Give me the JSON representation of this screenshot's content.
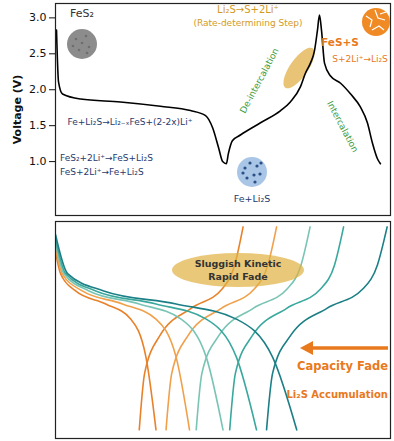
{
  "chart_data": [
    {
      "type": "line",
      "y_label": "Voltage (V)",
      "xlim": [
        0,
        100
      ],
      "ylim": [
        0.25,
        3.2
      ],
      "yticks": [
        {
          "value": 1,
          "label": "1.0"
        },
        1.5,
        {
          "value": 2,
          "label": "2.0"
        },
        2.5,
        {
          "value": 3,
          "label": "3.0"
        }
      ],
      "tick_labels": "y",
      "series": [
        {
          "color": "#000000",
          "x": [
            0.3,
            0.9,
            2.1,
            7.5,
            19.4,
            31.3,
            40.3,
            44.8,
            46.9,
            48.7,
            49.9,
            51.0,
            51.6,
            52.8,
            55.2,
            61.2,
            67.2,
            70.1,
            73.1,
            74.6,
            76.1,
            77.3,
            78.2,
            78.8,
            79.4,
            80.3,
            82.1,
            85.1,
            88.1,
            91.0,
            93.1,
            94.6,
            96.1,
            97.0
          ],
          "values": [
            2.83,
            2.11,
            1.94,
            1.87,
            1.83,
            1.77,
            1.71,
            1.64,
            1.47,
            1.19,
            1.0,
            0.97,
            1.11,
            1.29,
            1.37,
            1.54,
            1.71,
            1.83,
            2.04,
            2.23,
            2.37,
            2.54,
            2.83,
            3.04,
            2.83,
            2.37,
            2.19,
            2.09,
            1.94,
            1.76,
            1.54,
            1.26,
            1.04,
            0.97
          ]
        }
      ],
      "annotations": [
        "FeS₂",
        "Li₂S→S+2Li⁺",
        "(Rate-determining Step)",
        "FeS+S",
        "S+2Li⁺→Li₂S",
        "De-intercalation",
        "Intercalation",
        "Fe+Li₂S→Li₂₋ₓFeS+(2-2x)Li⁺",
        "FeS₂+2Li⁺→FeS+Li₂S",
        "FeS+2Li⁺→Fe+Li₂S",
        "Fe+Li₂S"
      ]
    },
    {
      "type": "line",
      "xlim": [
        0,
        100
      ],
      "ylim": [
        1.0,
        3.0
      ],
      "tick_labels": false,
      "series": [
        {
          "color": "#e8822a",
          "x": [
            0,
            1.5,
            6,
            15,
            22.5,
            27,
            30
          ],
          "values": [
            2.72,
            2.52,
            2.36,
            2.24,
            2.1,
            1.75,
            1.08
          ]
        },
        {
          "color": "#e8822a",
          "x": [
            25,
            26.6,
            31.2,
            40.5,
            49.8,
            53.5,
            56
          ],
          "values": [
            1.08,
            1.6,
            1.95,
            2.2,
            2.38,
            2.6,
            2.95
          ]
        },
        {
          "color": "#f0a04b",
          "x": [
            0,
            2,
            8,
            20,
            30,
            36,
            40
          ],
          "values": [
            2.76,
            2.52,
            2.36,
            2.24,
            2.1,
            1.75,
            1.08
          ]
        },
        {
          "color": "#f0a04b",
          "x": [
            33,
            34.7,
            39.6,
            49.5,
            59.4,
            63.4,
            66
          ],
          "values": [
            1.08,
            1.6,
            1.95,
            2.2,
            2.38,
            2.6,
            2.95
          ]
        },
        {
          "color": "#79c4b5",
          "x": [
            0,
            2.5,
            10,
            25,
            37.5,
            45,
            50
          ],
          "values": [
            2.8,
            2.52,
            2.36,
            2.24,
            2.1,
            1.75,
            1.08
          ]
        },
        {
          "color": "#79c4b5",
          "x": [
            42,
            43.7,
            48.8,
            59,
            69.2,
            73.3,
            76
          ],
          "values": [
            1.08,
            1.6,
            1.95,
            2.2,
            2.38,
            2.6,
            2.95
          ]
        },
        {
          "color": "#3aa89d",
          "x": [
            0,
            3,
            12,
            30,
            45,
            54,
            60
          ],
          "values": [
            2.84,
            2.52,
            2.36,
            2.24,
            2.1,
            1.75,
            1.08
          ]
        },
        {
          "color": "#3aa89d",
          "x": [
            52,
            53.7,
            58.8,
            69,
            79.2,
            83.3,
            86
          ],
          "values": [
            1.08,
            1.6,
            1.95,
            2.2,
            2.38,
            2.6,
            2.95
          ]
        },
        {
          "color": "#1b7f85",
          "x": [
            0,
            3.6,
            14.4,
            36,
            54,
            64.8,
            72
          ],
          "values": [
            2.88,
            2.52,
            2.36,
            2.24,
            2.1,
            1.75,
            1.08
          ]
        },
        {
          "color": "#1b7f85",
          "x": [
            63,
            64.8,
            70.2,
            81,
            91.8,
            96.1,
            99
          ],
          "values": [
            1.08,
            1.6,
            1.95,
            2.2,
            2.38,
            2.6,
            2.95
          ]
        }
      ],
      "annotations": [
        "Sluggish Kinetic",
        "Rapid Fade",
        "Capacity Fade",
        "Li₂S Accumulation"
      ]
    }
  ]
}
